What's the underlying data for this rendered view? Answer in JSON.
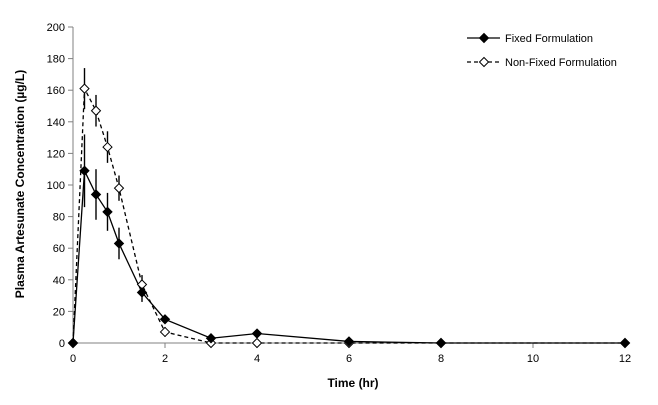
{
  "chart_data": {
    "type": "line",
    "title": "",
    "xlabel": "Time (hr)",
    "ylabel": "Plasma Artesunate Concentration (µg/L)",
    "xlim": [
      0,
      12
    ],
    "ylim": [
      0,
      200
    ],
    "x_ticks": [
      0,
      2,
      4,
      6,
      8,
      10,
      12
    ],
    "y_ticks": [
      0,
      20,
      40,
      60,
      80,
      100,
      120,
      140,
      160,
      180,
      200
    ],
    "grid": false,
    "legend_position": "top-right",
    "series": [
      {
        "name": "Fixed Formulation",
        "line_style": "solid",
        "marker": "filled-diamond",
        "color": "#000000",
        "x": [
          0,
          0.25,
          0.5,
          0.75,
          1,
          1.5,
          2,
          3,
          4,
          6,
          8,
          12
        ],
        "y": [
          0,
          109,
          94,
          83,
          63,
          32,
          15,
          3,
          6,
          1,
          0,
          0
        ],
        "error": [
          0,
          23,
          16,
          12,
          10,
          6,
          2,
          1,
          1,
          1,
          0,
          0
        ]
      },
      {
        "name": "Non-Fixed Formulation",
        "line_style": "dashed",
        "marker": "open-diamond",
        "color": "#000000",
        "x": [
          0,
          0.25,
          0.5,
          0.75,
          1,
          1.5,
          2,
          3,
          4,
          6,
          8,
          12
        ],
        "y": [
          0,
          161,
          147,
          124,
          98,
          37,
          7,
          0,
          0,
          0,
          0,
          0
        ],
        "error": [
          0,
          13,
          10,
          10,
          8,
          6,
          3,
          0,
          0,
          0,
          0,
          0
        ]
      }
    ]
  }
}
